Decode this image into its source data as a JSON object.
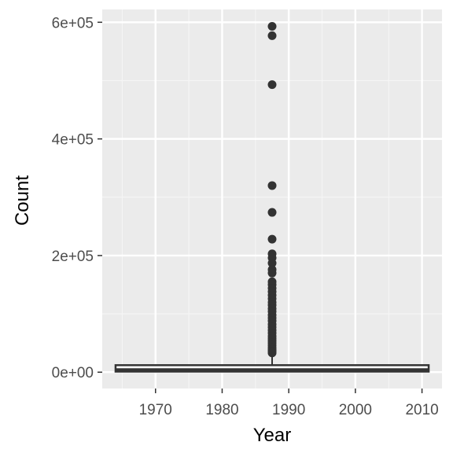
{
  "chart_data": {
    "type": "boxplot",
    "xlabel": "Year",
    "ylabel": "Count",
    "xlim": [
      1962,
      2013
    ],
    "ylim": [
      -28000,
      622000
    ],
    "x_ticks": [
      1970,
      1980,
      1990,
      2000,
      2010
    ],
    "x_tick_labels": [
      "1970",
      "1980",
      "1990",
      "2000",
      "2010"
    ],
    "y_ticks": [
      0,
      200000,
      400000,
      600000
    ],
    "y_tick_labels": [
      "0e+00",
      "2e+05",
      "4e+05",
      "6e+05"
    ],
    "x_minor_ticks": [
      1965,
      1975,
      1985,
      1995,
      2005
    ],
    "y_minor_ticks": [
      100000,
      300000,
      500000
    ],
    "grid": true,
    "box": {
      "x_center": 1987.5,
      "x_from": 1964,
      "x_to": 2011,
      "whisker_low": 0,
      "q1": 1000,
      "median": 4000,
      "q3": 12000,
      "whisker_high": 29000
    },
    "outliers": {
      "x": 1987.5,
      "y": [
        593000,
        577000,
        493000,
        320000,
        274000,
        228000,
        203000,
        196000,
        187000,
        176000,
        170000,
        155000,
        150000,
        144000,
        138000,
        132000,
        126000,
        120000,
        115000,
        109000,
        104000,
        98000,
        93000,
        88000,
        82000,
        77000,
        72000,
        67000,
        62000,
        58000,
        54000,
        50000,
        46000,
        42000,
        39000,
        36000,
        33000
      ]
    },
    "colors": {
      "panel_background": "#ebebeb",
      "grid_major": "#ffffff",
      "grid_minor": "#f5f5f5",
      "box_fill": "#ffffff",
      "box_line": "#333333",
      "outlier": "#333333"
    }
  }
}
